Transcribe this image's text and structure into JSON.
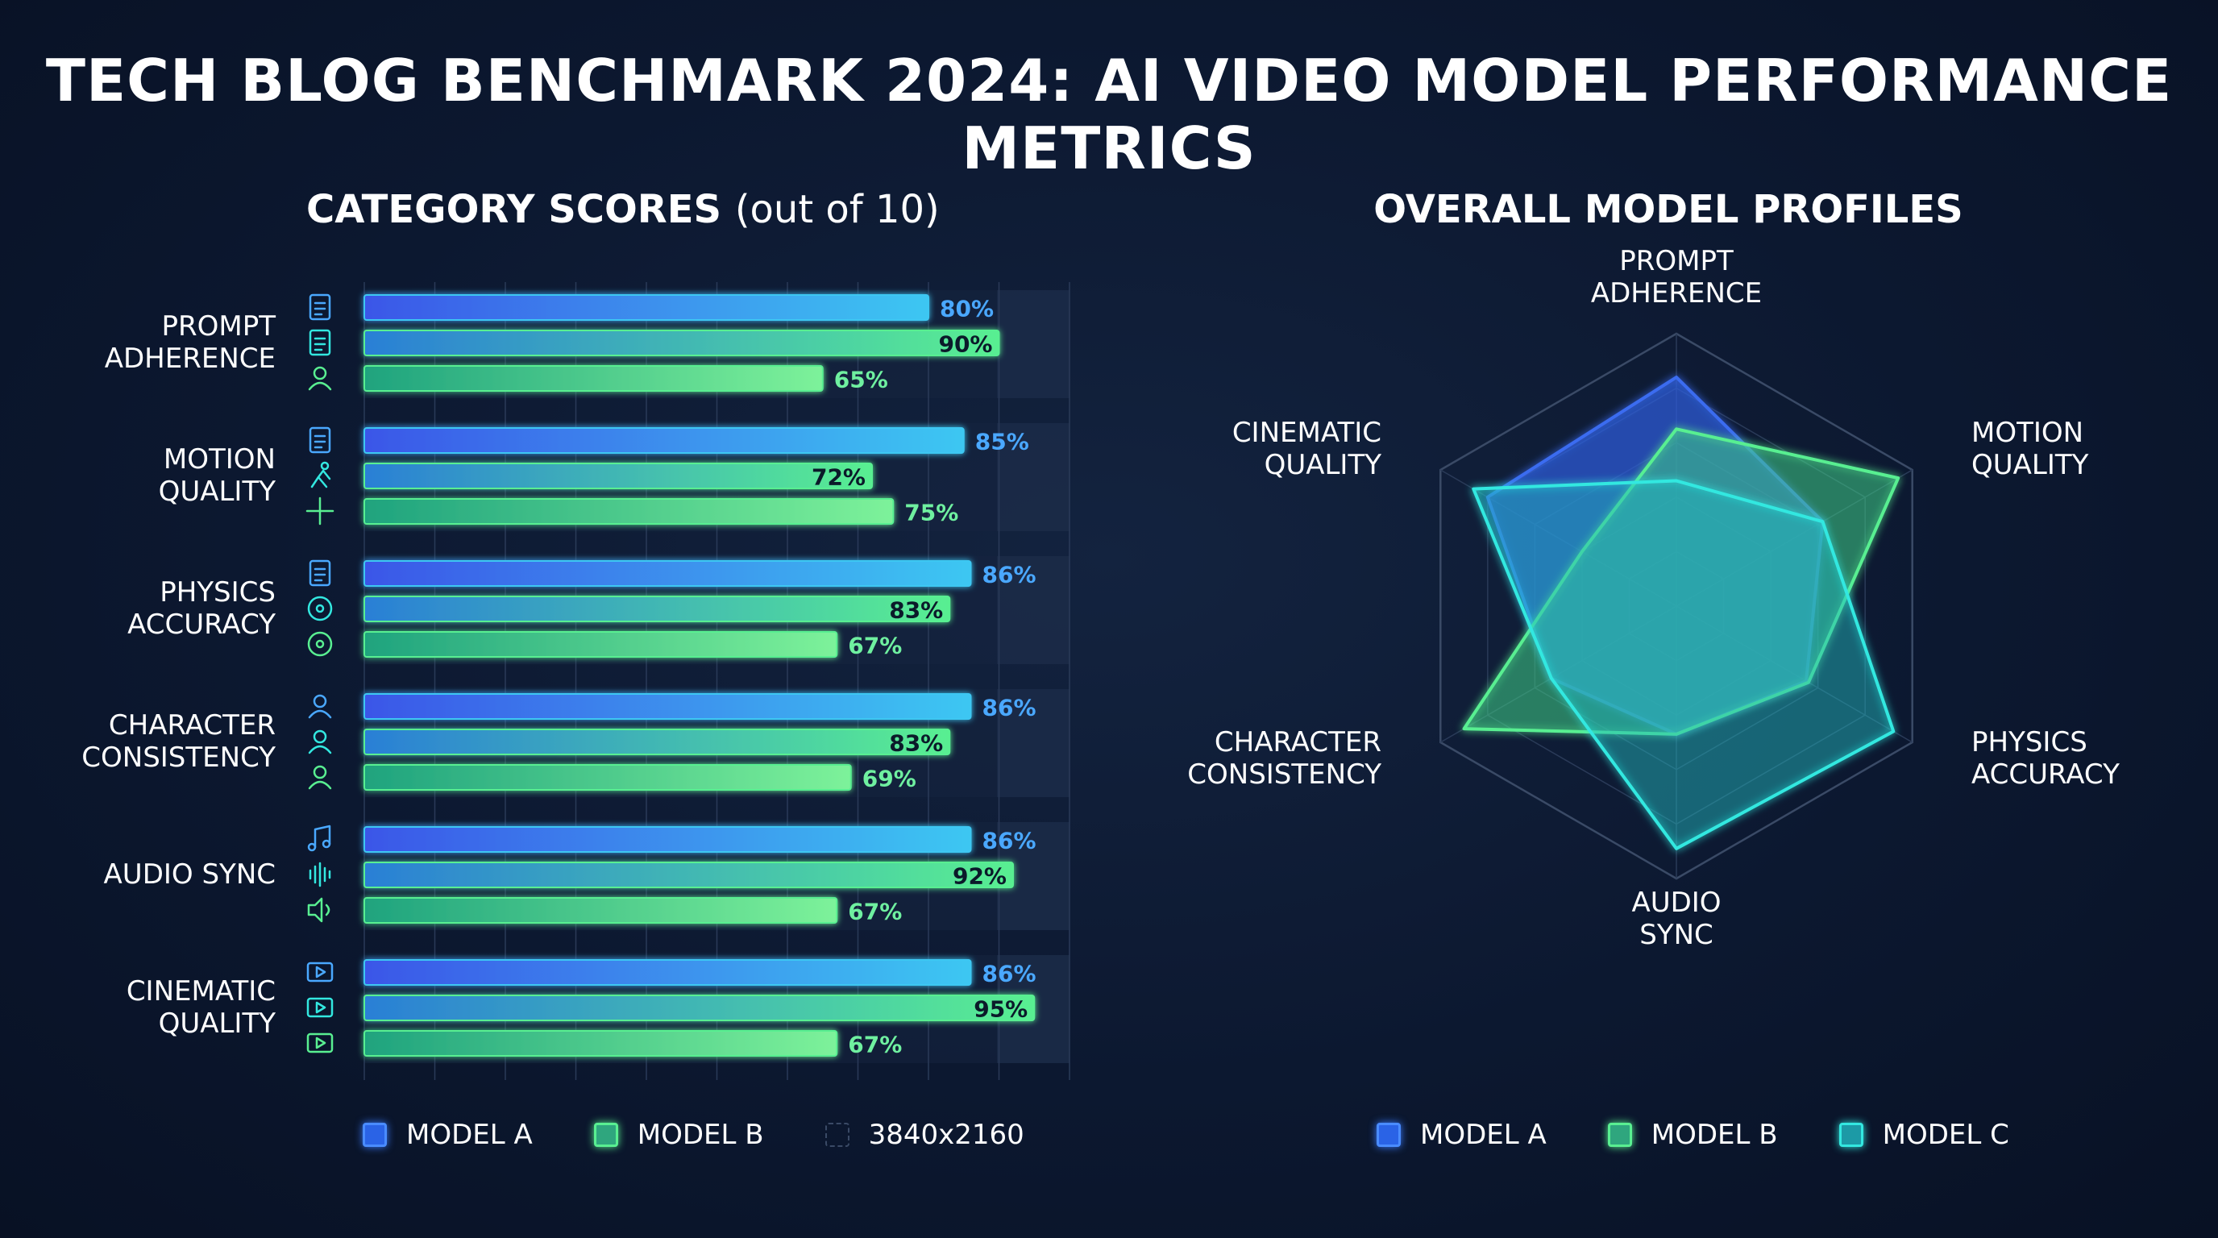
{
  "title": "TECH BLOG BENCHMARK 2024: AI VIDEO MODEL PERFORMANCE METRICS",
  "colors": {
    "model_a": "#3b6cf0",
    "model_a_light": "#3ec7f2",
    "model_b": "#59ef91",
    "model_c": "#33e8e0",
    "label_a": "#4aa8ff",
    "label_b": "#6ff0a0",
    "background": "#0c1830"
  },
  "chart_data": [
    {
      "type": "bar",
      "orientation": "horizontal",
      "title": "CATEGORY SCORES",
      "title_suffix": "(out of 10)",
      "categories": [
        "PROMPT\nADHERENCE",
        "MOTION\nQUALITY",
        "PHYSICS\nACCURACY",
        "CHARACTER\nCONSISTENCY",
        "AUDIO SYNC",
        "CINEMATIC\nQUALITY"
      ],
      "category_icons": [
        [
          "edit-icon",
          "document-icon",
          "users-icon"
        ],
        [
          "list-icon",
          "running-icon",
          "move-arrows-icon"
        ],
        [
          "crash-car-icon",
          "atom-icon",
          "smile-icon"
        ],
        [
          "person-icon",
          "person-icon",
          "head-gear-icon"
        ],
        [
          "music-note-icon",
          "waveform-icon",
          "speaker-icon"
        ],
        [
          "video-camera-icon",
          "clapperboard-icon",
          "play-box-icon"
        ]
      ],
      "series": [
        {
          "name": "MODEL A",
          "values": [
            80,
            85,
            86,
            86,
            86,
            86
          ],
          "labels": [
            "80%",
            "85%",
            "86%",
            "86%",
            "86%",
            "86%"
          ]
        },
        {
          "name": "MODEL B",
          "values": [
            90,
            72,
            83,
            83,
            92,
            95
          ],
          "labels": [
            "90%",
            "72%",
            "83%",
            "83%",
            "92%",
            "95%"
          ]
        },
        {
          "name": "",
          "values": [
            65,
            75,
            67,
            69,
            67,
            67
          ],
          "labels": [
            "65%",
            "75%",
            "67%",
            "69%",
            "67%",
            "67%"
          ]
        }
      ],
      "legend": [
        {
          "label": "MODEL A",
          "swatch": "model_a"
        },
        {
          "label": "MODEL B",
          "swatch": "model_b"
        },
        {
          "label": "3840x2160",
          "swatch": "dashed"
        }
      ],
      "legend_position": "bottom",
      "grid": true
    },
    {
      "type": "radar",
      "title": "OVERALL MODEL PROFILES",
      "axes": [
        "PROMPT\nADHERENCE",
        "MOTION\nQUALITY",
        "PHYSICS\nACCURACY",
        "AUDIO\nSYNC",
        "CHARACTER\nCONSISTENCY",
        "CINEMATIC\nQUALITY"
      ],
      "rmax": 10,
      "series": [
        {
          "name": "MODEL A",
          "values": [
            8.4,
            6.2,
            5.5,
            4.7,
            5.3,
            8.0
          ]
        },
        {
          "name": "MODEL B",
          "values": [
            6.5,
            9.4,
            5.6,
            4.7,
            9.0,
            4.0
          ]
        },
        {
          "name": "MODEL C",
          "values": [
            4.6,
            6.2,
            9.2,
            8.9,
            5.3,
            8.6
          ]
        }
      ],
      "legend": [
        {
          "label": "MODEL A",
          "swatch": "model_a"
        },
        {
          "label": "MODEL B",
          "swatch": "model_b"
        },
        {
          "label": "MODEL C",
          "swatch": "model_c"
        }
      ],
      "legend_position": "bottom",
      "grid": true
    }
  ]
}
